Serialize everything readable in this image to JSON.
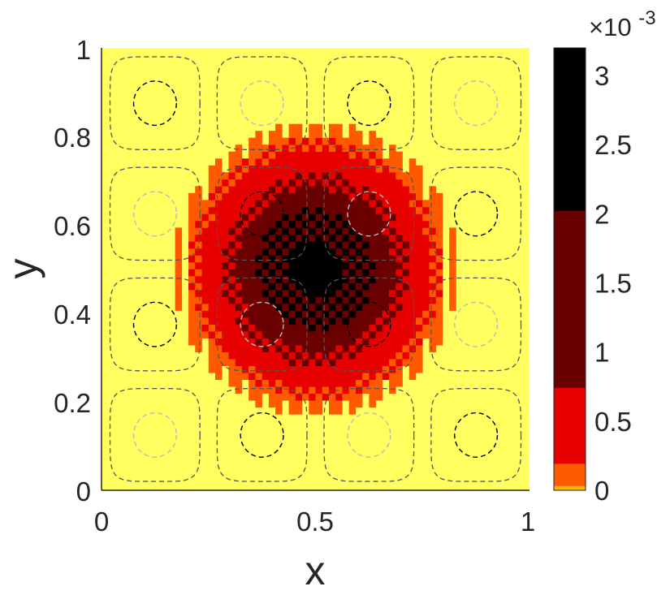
{
  "chart_data": {
    "type": "heatmap",
    "title": "",
    "xlabel": "x",
    "ylabel": "y",
    "xlim": [
      0,
      1
    ],
    "ylim": [
      0,
      1
    ],
    "x_ticks": [
      "0",
      "0.5",
      "1"
    ],
    "y_ticks": [
      "0",
      "0.2",
      "0.4",
      "0.6",
      "0.8",
      "1"
    ],
    "grid": false,
    "legend": "none",
    "colorbar": {
      "multiplier_label": "×10",
      "exponent_label": "-3",
      "ticks": [
        "0",
        "0.5",
        "1",
        "1.5",
        "2",
        "2.5",
        "3"
      ],
      "tick_values": [
        0,
        0.5,
        1,
        1.5,
        2,
        2.5,
        3
      ],
      "range": [
        0,
        3.2
      ],
      "bands": [
        {
          "from": 0,
          "to": 0.03,
          "color": "#ffb800"
        },
        {
          "from": 0.03,
          "to": 0.19,
          "color": "#ff5a00"
        },
        {
          "from": 0.19,
          "to": 0.74,
          "color": "#e60000"
        },
        {
          "from": 0.74,
          "to": 2.02,
          "color": "#6b0000"
        },
        {
          "from": 2.02,
          "to": 3.2,
          "color": "#000000"
        }
      ]
    },
    "field": {
      "description_of_values": "value * 1e-3, peak at center",
      "grid_n": 64,
      "center": [
        0.5,
        0.5
      ],
      "peak": 3.1
    },
    "contours": {
      "cell_centers": [
        0.125,
        0.375,
        0.625,
        0.875
      ],
      "levels": [
        {
          "name": "outer",
          "radius": 0.105,
          "color": "#555555"
        },
        {
          "name": "inner-pos",
          "radius": 0.05,
          "color": "#000000"
        },
        {
          "name": "inner-neg",
          "radius": 0.05,
          "color": "#bbbbbb"
        }
      ]
    },
    "colors": {
      "background": "#ffff60",
      "axis": "#262626"
    }
  }
}
